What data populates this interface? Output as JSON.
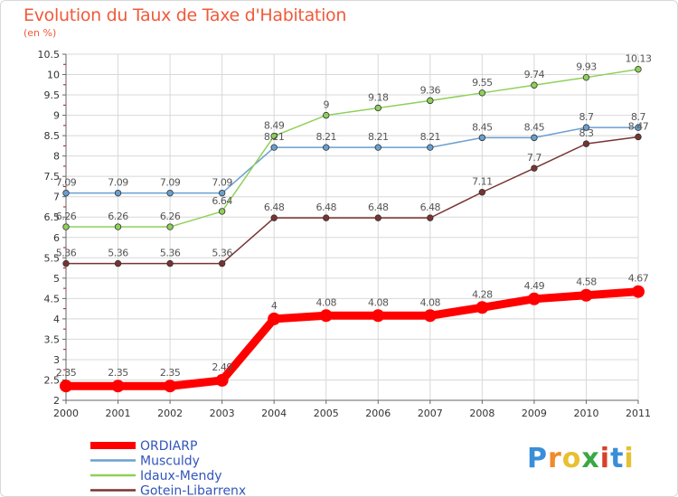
{
  "title": "Evolution du Taux de Taxe d'Habitation",
  "unit_label": "(en %)",
  "logo_text": "Proxiti",
  "logo_colors": [
    "#3a8ed8",
    "#f08a2a",
    "#e8c030",
    "#3aa843",
    "#d8402a",
    "#3a8ed8",
    "#e8c030"
  ],
  "colors": {
    "axis": "#666666",
    "grid": "#d8d8d8",
    "tick_text": "#333333",
    "label_text": "#555555",
    "legend_text": "#3355bb",
    "minor_tick": "#cc0000"
  },
  "chart_data": {
    "type": "line",
    "title": "Evolution du Taux de Taxe d'Habitation",
    "ylabel": "(en %)",
    "xlabel": "",
    "x": [
      2000,
      2001,
      2002,
      2003,
      2004,
      2005,
      2006,
      2007,
      2008,
      2009,
      2010,
      2011
    ],
    "x_tick_labels": [
      "2000",
      "2001",
      "2002",
      "2003",
      "2004",
      "2005",
      "2006",
      "2007",
      "2008",
      "2009",
      "2010",
      "2011"
    ],
    "ylim": [
      2,
      10.5
    ],
    "y_ticks": [
      2,
      2.5,
      3,
      3.5,
      4,
      4.5,
      5,
      5.5,
      6,
      6.5,
      7,
      7.5,
      8,
      8.5,
      9,
      9.5,
      10,
      10.5
    ],
    "y_tick_labels": [
      "2",
      "2.5",
      "3",
      "3.5",
      "4",
      "4.5",
      "5",
      "5.5",
      "6",
      "6.5",
      "7",
      "7.5",
      "8",
      "8.5",
      "9",
      "9.5",
      "10",
      "10.5"
    ],
    "grid": true,
    "legend_position": "bottom-left",
    "series": [
      {
        "name": "ORDIARP",
        "color": "#ff0000",
        "values": [
          2.35,
          2.35,
          2.35,
          2.49,
          4,
          4.08,
          4.08,
          4.08,
          4.28,
          4.49,
          4.58,
          4.67
        ],
        "labels": [
          "2.35",
          "2.35",
          "2.35",
          "2.49",
          "4",
          "4.08",
          "4.08",
          "4.08",
          "4.28",
          "4.49",
          "4.58",
          "4.67"
        ]
      },
      {
        "name": "Musculdy",
        "color": "#6a9fd0",
        "values": [
          7.09,
          7.09,
          7.09,
          7.09,
          8.21,
          8.21,
          8.21,
          8.21,
          8.45,
          8.45,
          8.7,
          8.7
        ],
        "labels": [
          "7.09",
          "7.09",
          "7.09",
          "7.09",
          "8.21",
          "8.21",
          "8.21",
          "8.21",
          "8.45",
          "8.45",
          "8.7",
          "8.7"
        ]
      },
      {
        "name": "Idaux-Mendy",
        "color": "#8fd05a",
        "values": [
          6.26,
          6.26,
          6.26,
          6.64,
          8.49,
          9,
          9.18,
          9.36,
          9.55,
          9.74,
          9.93,
          10.13
        ],
        "labels": [
          "6.26",
          "6.26",
          "6.26",
          "6.64",
          "8.49",
          "9",
          "9.18",
          "9.36",
          "9.55",
          "9.74",
          "9.93",
          "10.13"
        ]
      },
      {
        "name": "Gotein-Libarrenx",
        "color": "#7a3333",
        "values": [
          5.36,
          5.36,
          5.36,
          5.36,
          6.48,
          6.48,
          6.48,
          6.48,
          7.11,
          7.7,
          8.3,
          8.47
        ],
        "labels": [
          "5.36",
          "5.36",
          "5.36",
          "5.36",
          "6.48",
          "6.48",
          "6.48",
          "6.48",
          "7.11",
          "7.7",
          "8.3",
          "8.47"
        ]
      }
    ]
  }
}
